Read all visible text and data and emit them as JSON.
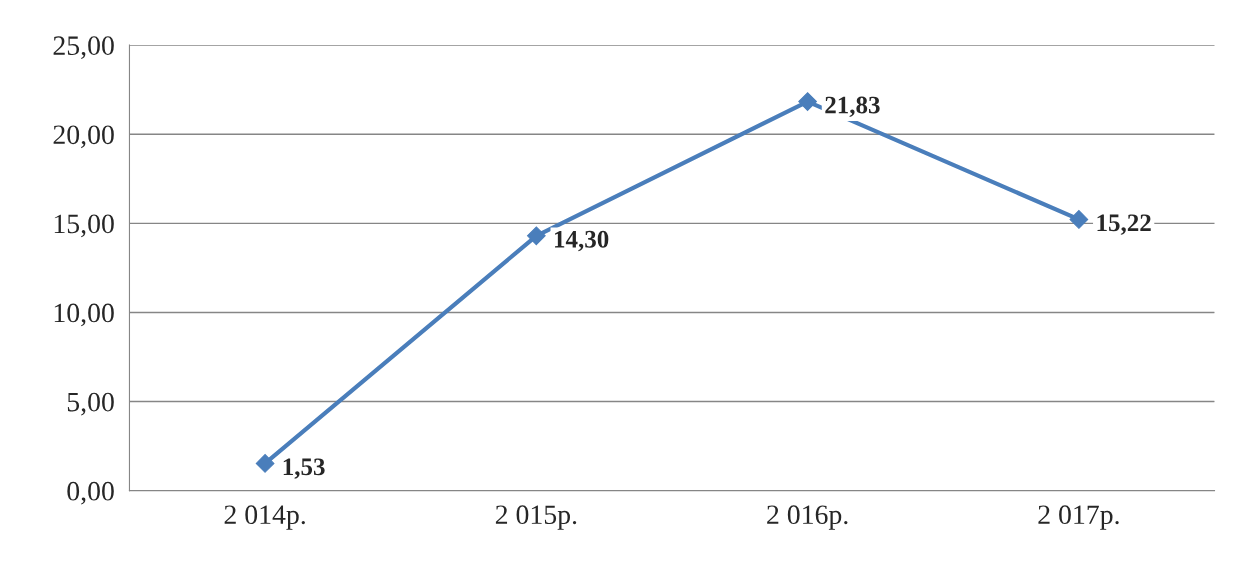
{
  "chart_data": {
    "type": "line",
    "categories": [
      "2 014р.",
      "2 015р.",
      "2 016р.",
      "2 017р."
    ],
    "series": [
      {
        "color": "#4a7ebb",
        "values": [
          1.53,
          14.3,
          21.83,
          15.22
        ],
        "value_labels": [
          "1,53",
          "14,30",
          "21,83",
          "15,22"
        ]
      }
    ],
    "ylim": [
      0,
      25
    ],
    "yticks": [
      {
        "value": 0,
        "label": "0,00"
      },
      {
        "value": 5,
        "label": "5,00"
      },
      {
        "value": 10,
        "label": "10,00"
      },
      {
        "value": 15,
        "label": "15,00"
      },
      {
        "value": 20,
        "label": "20,00"
      },
      {
        "value": 25,
        "label": "25,00"
      }
    ],
    "grid": "y",
    "marker": "diamond",
    "line_style": "solid"
  }
}
